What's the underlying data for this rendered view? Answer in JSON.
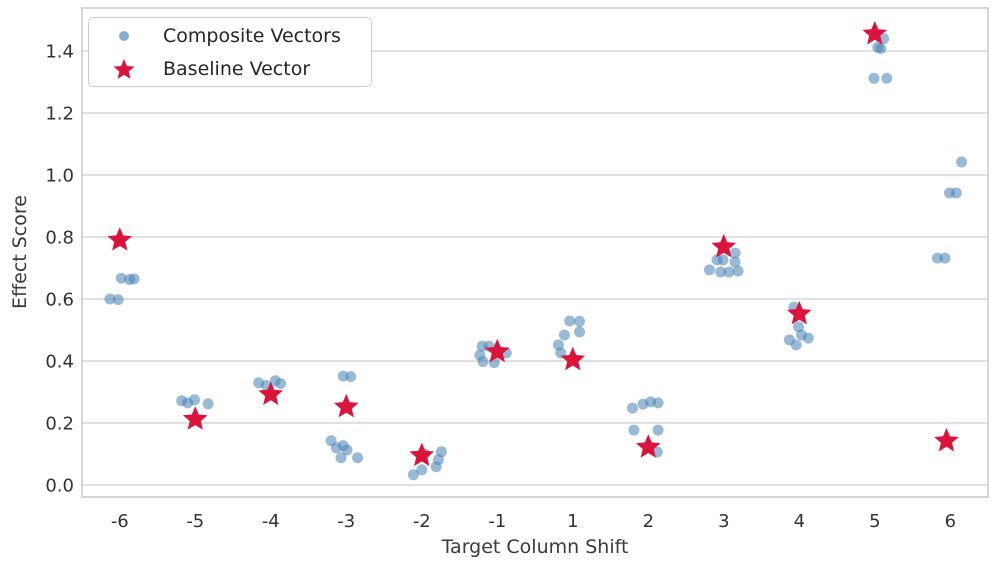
{
  "chart_data": {
    "type": "scatter",
    "title": "",
    "xlabel": "Target Column Shift",
    "ylabel": "Effect Score",
    "x_categories": [
      "-6",
      "-5",
      "-4",
      "-3",
      "-2",
      "-1",
      "1",
      "2",
      "3",
      "4",
      "5",
      "6"
    ],
    "ytick_labels": [
      "0.0",
      "0.2",
      "0.4",
      "0.6",
      "0.8",
      "1.0",
      "1.2",
      "1.4"
    ],
    "ylim": [
      -0.04,
      1.54
    ],
    "grid": "horizontal",
    "legend_position": "upper left",
    "style": {
      "grid_color": "#cfcfcf",
      "spine_color": "#c6c6c6",
      "text_color": "#333333",
      "background": "#ffffff"
    },
    "series": [
      {
        "name": "Composite Vectors",
        "marker": "circle",
        "color": "#4682B4",
        "opacity": 0.55,
        "marker_radius": 5.5,
        "points": [
          {
            "shift": "-6",
            "dx": -0.13,
            "y": 0.6
          },
          {
            "shift": "-6",
            "dx": -0.02,
            "y": 0.598
          },
          {
            "shift": "-6",
            "dx": 0.02,
            "y": 0.667
          },
          {
            "shift": "-6",
            "dx": 0.13,
            "y": 0.663
          },
          {
            "shift": "-6",
            "dx": 0.19,
            "y": 0.665
          },
          {
            "shift": "-5",
            "dx": -0.18,
            "y": 0.272
          },
          {
            "shift": "-5",
            "dx": -0.1,
            "y": 0.265
          },
          {
            "shift": "-5",
            "dx": -0.01,
            "y": 0.275
          },
          {
            "shift": "-5",
            "dx": 0.17,
            "y": 0.262
          },
          {
            "shift": "-4",
            "dx": -0.16,
            "y": 0.33
          },
          {
            "shift": "-4",
            "dx": -0.06,
            "y": 0.321
          },
          {
            "shift": "-4",
            "dx": 0.06,
            "y": 0.336
          },
          {
            "shift": "-4",
            "dx": 0.13,
            "y": 0.327
          },
          {
            "shift": "-3",
            "dx": -0.04,
            "y": 0.351
          },
          {
            "shift": "-3",
            "dx": 0.06,
            "y": 0.35
          },
          {
            "shift": "-3",
            "dx": -0.2,
            "y": 0.143
          },
          {
            "shift": "-3",
            "dx": -0.13,
            "y": 0.12
          },
          {
            "shift": "-3",
            "dx": -0.04,
            "y": 0.127
          },
          {
            "shift": "-3",
            "dx": 0.01,
            "y": 0.113
          },
          {
            "shift": "-3",
            "dx": -0.07,
            "y": 0.088
          },
          {
            "shift": "-3",
            "dx": 0.15,
            "y": 0.088
          },
          {
            "shift": "-2",
            "dx": 0.26,
            "y": 0.107
          },
          {
            "shift": "-2",
            "dx": 0.22,
            "y": 0.082
          },
          {
            "shift": "-2",
            "dx": 0.19,
            "y": 0.059
          },
          {
            "shift": "-2",
            "dx": 0.0,
            "y": 0.049
          },
          {
            "shift": "-2",
            "dx": -0.11,
            "y": 0.033
          },
          {
            "shift": "-2",
            "dx": 0.04,
            "y": 0.1
          },
          {
            "shift": "-1",
            "dx": -0.2,
            "y": 0.448
          },
          {
            "shift": "-1",
            "dx": -0.11,
            "y": 0.448
          },
          {
            "shift": "-1",
            "dx": -0.23,
            "y": 0.419
          },
          {
            "shift": "-1",
            "dx": -0.19,
            "y": 0.398
          },
          {
            "shift": "-1",
            "dx": -0.04,
            "y": 0.395
          },
          {
            "shift": "-1",
            "dx": 0.12,
            "y": 0.426
          },
          {
            "shift": "1",
            "dx": -0.04,
            "y": 0.529
          },
          {
            "shift": "1",
            "dx": 0.09,
            "y": 0.528
          },
          {
            "shift": "1",
            "dx": 0.09,
            "y": 0.494
          },
          {
            "shift": "1",
            "dx": -0.11,
            "y": 0.484
          },
          {
            "shift": "1",
            "dx": -0.19,
            "y": 0.452
          },
          {
            "shift": "1",
            "dx": -0.16,
            "y": 0.426
          },
          {
            "shift": "2",
            "dx": -0.21,
            "y": 0.248
          },
          {
            "shift": "2",
            "dx": -0.07,
            "y": 0.261
          },
          {
            "shift": "2",
            "dx": 0.03,
            "y": 0.268
          },
          {
            "shift": "2",
            "dx": 0.13,
            "y": 0.265
          },
          {
            "shift": "2",
            "dx": -0.19,
            "y": 0.177
          },
          {
            "shift": "2",
            "dx": 0.13,
            "y": 0.177
          },
          {
            "shift": "2",
            "dx": 0.12,
            "y": 0.106
          },
          {
            "shift": "3",
            "dx": -0.09,
            "y": 0.726
          },
          {
            "shift": "3",
            "dx": -0.01,
            "y": 0.726
          },
          {
            "shift": "3",
            "dx": 0.15,
            "y": 0.748
          },
          {
            "shift": "3",
            "dx": 0.15,
            "y": 0.719
          },
          {
            "shift": "3",
            "dx": -0.19,
            "y": 0.694
          },
          {
            "shift": "3",
            "dx": -0.04,
            "y": 0.687
          },
          {
            "shift": "3",
            "dx": 0.07,
            "y": 0.687
          },
          {
            "shift": "3",
            "dx": 0.19,
            "y": 0.69
          },
          {
            "shift": "4",
            "dx": -0.07,
            "y": 0.574
          },
          {
            "shift": "4",
            "dx": -0.01,
            "y": 0.51
          },
          {
            "shift": "4",
            "dx": 0.03,
            "y": 0.484
          },
          {
            "shift": "4",
            "dx": 0.12,
            "y": 0.474
          },
          {
            "shift": "4",
            "dx": -0.13,
            "y": 0.468
          },
          {
            "shift": "4",
            "dx": -0.04,
            "y": 0.452
          },
          {
            "shift": "5",
            "dx": 0.12,
            "y": 1.44
          },
          {
            "shift": "5",
            "dx": 0.04,
            "y": 1.412
          },
          {
            "shift": "5",
            "dx": 0.08,
            "y": 1.408
          },
          {
            "shift": "5",
            "dx": -0.01,
            "y": 1.312
          },
          {
            "shift": "5",
            "dx": 0.16,
            "y": 1.312
          },
          {
            "shift": "6",
            "dx": 0.15,
            "y": 1.042
          },
          {
            "shift": "6",
            "dx": -0.01,
            "y": 0.942
          },
          {
            "shift": "6",
            "dx": 0.08,
            "y": 0.942
          },
          {
            "shift": "6",
            "dx": -0.17,
            "y": 0.732
          },
          {
            "shift": "6",
            "dx": -0.07,
            "y": 0.732
          }
        ]
      },
      {
        "name": "Baseline Vector",
        "marker": "star",
        "color": "#DC143C",
        "opacity": 1,
        "marker_radius": 13,
        "points": [
          {
            "shift": "-6",
            "dx": 0,
            "y": 0.79
          },
          {
            "shift": "-5",
            "dx": 0,
            "y": 0.212
          },
          {
            "shift": "-4",
            "dx": 0,
            "y": 0.292
          },
          {
            "shift": "-3",
            "dx": 0,
            "y": 0.252
          },
          {
            "shift": "-2",
            "dx": 0,
            "y": 0.095
          },
          {
            "shift": "-1",
            "dx": 0,
            "y": 0.43
          },
          {
            "shift": "1",
            "dx": 0,
            "y": 0.404
          },
          {
            "shift": "2",
            "dx": 0,
            "y": 0.122
          },
          {
            "shift": "3",
            "dx": 0,
            "y": 0.768
          },
          {
            "shift": "4",
            "dx": 0,
            "y": 0.552
          },
          {
            "shift": "5",
            "dx": 0,
            "y": 1.455
          },
          {
            "shift": "6",
            "dx": -0.05,
            "y": 0.142
          }
        ]
      }
    ]
  }
}
